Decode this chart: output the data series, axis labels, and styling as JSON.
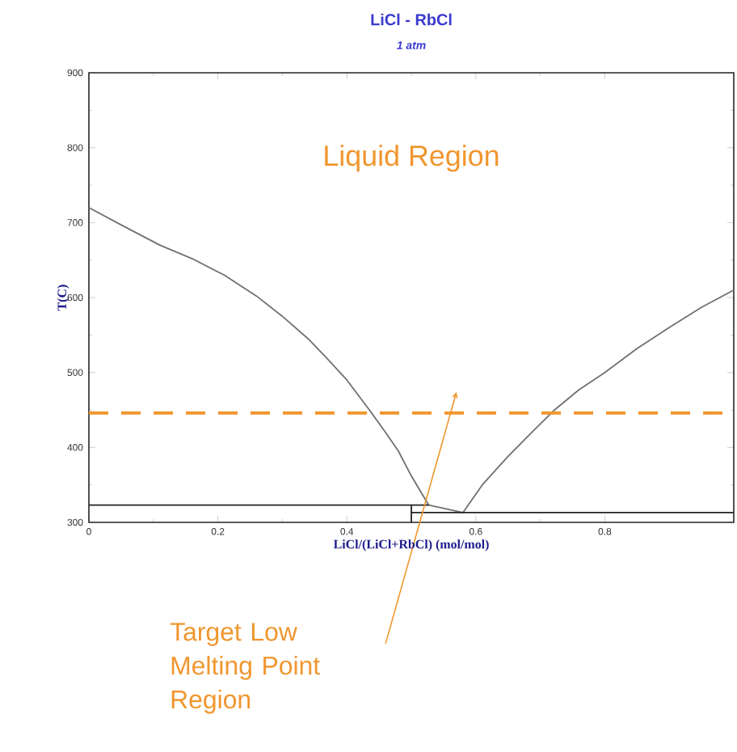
{
  "chart_data": {
    "type": "line",
    "title": "LiCl - RbCl",
    "subtitle": "1 atm",
    "xlabel": "LiCl/(LiCl+RbCl) (mol/mol)",
    "ylabel": "T(C)",
    "xlim": [
      0,
      1
    ],
    "ylim": [
      300,
      900
    ],
    "xticks": [
      0,
      0.2,
      0.4,
      0.6,
      0.8
    ],
    "yticks": [
      300,
      400,
      500,
      600,
      700,
      800,
      900
    ],
    "grid": false,
    "marker": "none",
    "series": [
      {
        "color": "#707070",
        "x": [
          0,
          0.05,
          0.11,
          0.16,
          0.21,
          0.26,
          0.3,
          0.34,
          0.37,
          0.4,
          0.435,
          0.46,
          0.48,
          0.5,
          0.527
        ],
        "values": [
          720,
          697,
          670,
          652,
          630,
          602,
          575,
          545,
          518,
          490,
          450,
          420,
          395,
          362,
          323
        ]
      },
      {
        "color": "#707070",
        "x": [
          0.58,
          0.61,
          0.65,
          0.69,
          0.722,
          0.76,
          0.8,
          0.85,
          0.9,
          0.95,
          1.0
        ],
        "values": [
          313,
          350,
          388,
          423,
          450,
          477,
          500,
          532,
          560,
          587,
          610
        ]
      },
      {
        "color": "#707070",
        "x": [
          0.527,
          0.58
        ],
        "values": [
          323,
          313
        ]
      },
      {
        "color": "#222222",
        "x": [
          0,
          0.527
        ],
        "values": [
          323,
          323
        ]
      },
      {
        "color": "#222222",
        "x": [
          0.5,
          1.0
        ],
        "values": [
          313,
          313
        ]
      },
      {
        "color": "#222222",
        "x": [
          0.5,
          0.5
        ],
        "values": [
          300,
          323
        ]
      }
    ],
    "ref_lines": [
      {
        "axis": "y",
        "value": 446,
        "color": "#f0962e",
        "line_style": "dashed"
      }
    ],
    "annotations": [
      "Liquid Region",
      "Target Low Melting Point Region"
    ]
  }
}
